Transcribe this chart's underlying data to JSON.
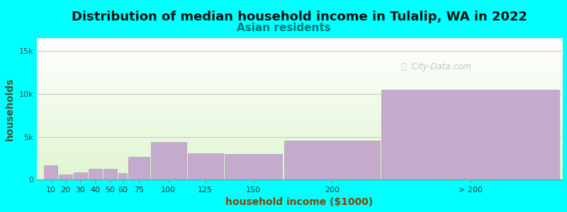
{
  "title": "Distribution of median household income in Tulalip, WA in 2022",
  "subtitle": "Asian residents",
  "xlabel": "household income ($1000)",
  "ylabel": "households",
  "background_color": "#00FFFF",
  "bar_color": "#C4AACC",
  "bar_edge_color": "#B09AB8",
  "categories": [
    "10",
    "20",
    "30",
    "40",
    "50",
    "60",
    "75",
    "100",
    "125",
    "150",
    "200",
    "> 200"
  ],
  "bar_lefts": [
    5,
    15,
    25,
    35,
    45,
    55,
    62,
    77,
    102,
    127,
    167,
    233
  ],
  "bar_widths": [
    9,
    9,
    9,
    9,
    9,
    6,
    14,
    24,
    24,
    39,
    65,
    120
  ],
  "values": [
    1700,
    600,
    900,
    1300,
    1300,
    750,
    2700,
    4400,
    3100,
    3000,
    4600,
    10500
  ],
  "yticks": [
    0,
    5000,
    10000,
    15000
  ],
  "ylim": [
    0,
    16500
  ],
  "xlim": [
    0,
    355
  ],
  "title_fontsize": 13,
  "subtitle_fontsize": 11,
  "axis_label_fontsize": 10,
  "tick_fontsize": 8,
  "watermark": "ⓘ  City-Data.com"
}
